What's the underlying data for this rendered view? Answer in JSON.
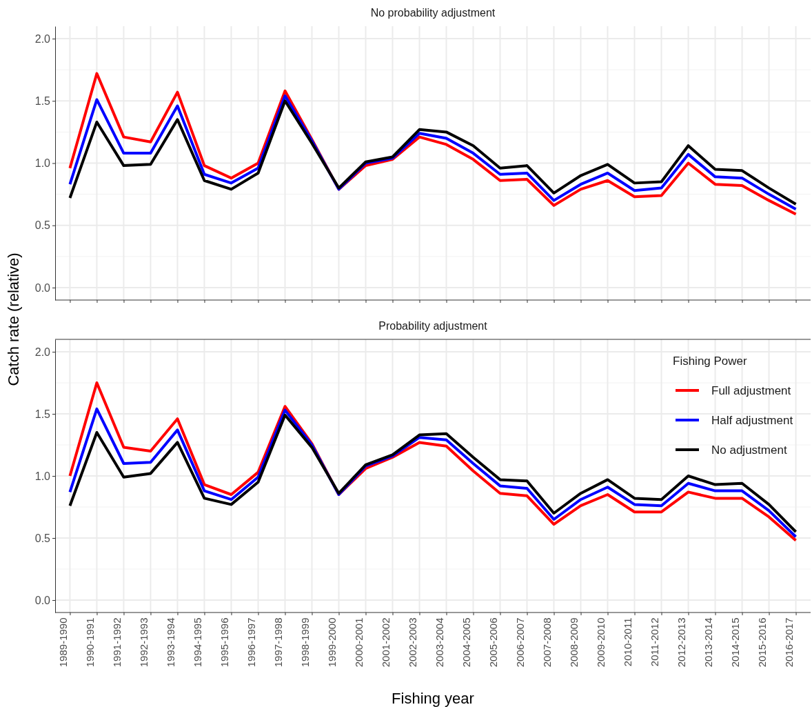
{
  "chart_data": [
    {
      "type": "line",
      "title": "No probability adjustment",
      "ylabel": "Catch rate (relative)",
      "categories": [
        null,
        null,
        null,
        null,
        null,
        null,
        null,
        null,
        null,
        null,
        null,
        null,
        null,
        null,
        null,
        null,
        null,
        null,
        null,
        null,
        null,
        null,
        null,
        null,
        null,
        null,
        null,
        null
      ],
      "ylim": [
        -0.1,
        2.1
      ],
      "yticks": [
        {
          "value": 0,
          "label": "0.0"
        },
        {
          "value": 0.5,
          "label": "0.5"
        },
        {
          "value": 1,
          "label": "1.0"
        },
        {
          "value": 1.5,
          "label": "1.5"
        },
        {
          "value": 2,
          "label": "2.0"
        }
      ],
      "grid": true,
      "tick_labels": "y",
      "legend": false,
      "line_style": "solid",
      "marker": "none",
      "series": [
        {
          "color": "#ff0000",
          "values": [
            0.96,
            1.72,
            1.21,
            1.17,
            1.57,
            0.98,
            0.88,
            1.0,
            1.58,
            1.19,
            0.79,
            0.98,
            1.03,
            1.21,
            1.15,
            1.03,
            0.86,
            0.87,
            0.66,
            0.79,
            0.86,
            0.73,
            0.74,
            1.0,
            0.83,
            0.82,
            0.7,
            0.59
          ]
        },
        {
          "color": "#0000ff",
          "values": [
            0.83,
            1.51,
            1.08,
            1.08,
            1.46,
            0.91,
            0.84,
            0.96,
            1.54,
            1.18,
            0.79,
            1.0,
            1.04,
            1.24,
            1.2,
            1.08,
            0.91,
            0.92,
            0.7,
            0.83,
            0.92,
            0.78,
            0.8,
            1.07,
            0.89,
            0.88,
            0.75,
            0.63
          ]
        },
        {
          "color": "#000000",
          "values": [
            0.72,
            1.33,
            0.98,
            0.99,
            1.35,
            0.86,
            0.79,
            0.92,
            1.5,
            1.16,
            0.8,
            1.01,
            1.05,
            1.27,
            1.25,
            1.14,
            0.96,
            0.98,
            0.76,
            0.9,
            0.99,
            0.84,
            0.85,
            1.14,
            0.95,
            0.94,
            0.8,
            0.67
          ]
        }
      ]
    },
    {
      "type": "line",
      "title": "Probability adjustment",
      "xlabel": "Fishing year",
      "legend_title": "Fishing Power",
      "categories": [
        "1989-1990",
        "1990-1991",
        "1991-1992",
        "1992-1993",
        "1993-1994",
        "1994-1995",
        "1995-1996",
        "1996-1997",
        "1997-1998",
        "1998-1999",
        "1999-2000",
        "2000-2001",
        "2001-2002",
        "2002-2003",
        "2003-2004",
        "2004-2005",
        "2005-2006",
        "2006-2007",
        "2007-2008",
        "2008-2009",
        "2009-2010",
        "2010-2011",
        "2011-2012",
        "2012-2013",
        "2013-2014",
        "2014-2015",
        "2015-2016",
        "2016-2017"
      ],
      "ylim": [
        -0.1,
        2.1
      ],
      "yticks": [
        {
          "value": 0,
          "label": "0.0"
        },
        {
          "value": 0.5,
          "label": "0.5"
        },
        {
          "value": 1,
          "label": "1.0"
        },
        {
          "value": 1.5,
          "label": "1.5"
        },
        {
          "value": 2,
          "label": "2.0"
        }
      ],
      "grid": true,
      "legend": "top right",
      "line_style": "solid",
      "marker": "none",
      "series": [
        {
          "name": "Full adjustment",
          "color": "#ff0000",
          "values": [
            1.0,
            1.75,
            1.23,
            1.2,
            1.46,
            0.93,
            0.85,
            1.03,
            1.56,
            1.26,
            0.85,
            1.06,
            1.15,
            1.27,
            1.24,
            1.04,
            0.86,
            0.84,
            0.61,
            0.76,
            0.85,
            0.71,
            0.71,
            0.87,
            0.82,
            0.82,
            0.67,
            0.48
          ]
        },
        {
          "name": "Half adjustment",
          "color": "#0000ff",
          "values": [
            0.87,
            1.54,
            1.1,
            1.11,
            1.37,
            0.88,
            0.81,
            0.99,
            1.53,
            1.25,
            0.85,
            1.08,
            1.16,
            1.31,
            1.29,
            1.1,
            0.92,
            0.9,
            0.65,
            0.81,
            0.91,
            0.77,
            0.76,
            0.94,
            0.88,
            0.88,
            0.72,
            0.51
          ]
        },
        {
          "name": "No adjustment",
          "color": "#000000",
          "values": [
            0.76,
            1.35,
            0.99,
            1.02,
            1.27,
            0.82,
            0.77,
            0.95,
            1.49,
            1.23,
            0.86,
            1.09,
            1.17,
            1.33,
            1.34,
            1.15,
            0.97,
            0.96,
            0.7,
            0.86,
            0.97,
            0.82,
            0.81,
            1.0,
            0.93,
            0.94,
            0.77,
            0.55
          ]
        }
      ]
    }
  ]
}
